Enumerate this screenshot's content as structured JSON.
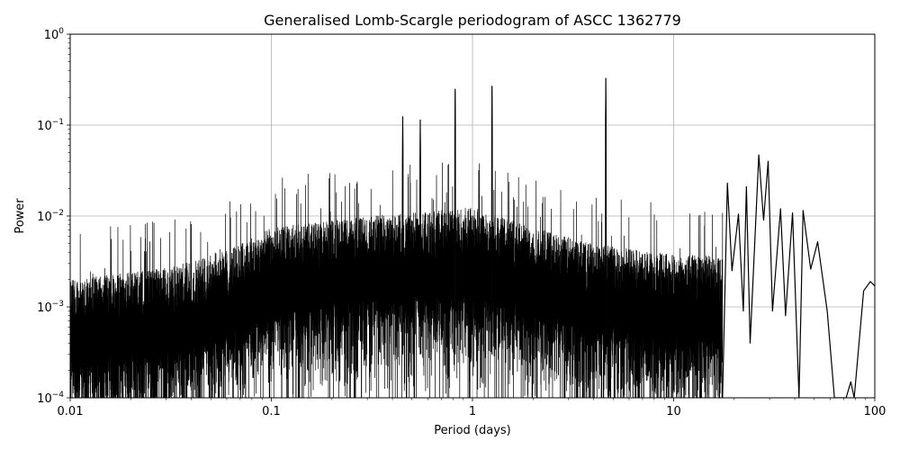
{
  "chart_data": {
    "type": "line",
    "title": "Generalised Lomb-Scargle periodogram of ASCC 1362779",
    "xlabel": "Period (days)",
    "ylabel": "Power",
    "x_scale": "log",
    "y_scale": "log",
    "xlim": [
      0.01,
      100
    ],
    "ylim": [
      0.0001,
      1
    ],
    "grid": true,
    "legend": "none",
    "x_ticks": [
      {
        "value": 0.01,
        "label": "0.01"
      },
      {
        "value": 0.1,
        "label": "0.1"
      },
      {
        "value": 1,
        "label": "1"
      },
      {
        "value": 10,
        "label": "10"
      },
      {
        "value": 100,
        "label": "100"
      }
    ],
    "y_ticks": [
      {
        "value": 0.0001,
        "mantissa": "10",
        "exponent": "−4"
      },
      {
        "value": 0.001,
        "mantissa": "10",
        "exponent": "−3"
      },
      {
        "value": 0.01,
        "mantissa": "10",
        "exponent": "−2"
      },
      {
        "value": 0.1,
        "mantissa": "10",
        "exponent": "−1"
      },
      {
        "value": 1,
        "mantissa": "10",
        "exponent": "0"
      }
    ],
    "series": [
      {
        "color": "#000000",
        "notable_peaks": [
          {
            "period": 0.45,
            "power": 0.125
          },
          {
            "period": 0.55,
            "power": 0.115
          },
          {
            "period": 0.82,
            "power": 0.25
          },
          {
            "period": 1.25,
            "power": 0.27
          },
          {
            "period": 4.6,
            "power": 0.33
          },
          {
            "period": 18.5,
            "power": 0.023
          },
          {
            "period": 23,
            "power": 0.021
          },
          {
            "period": 26.5,
            "power": 0.047
          },
          {
            "period": 29.5,
            "power": 0.04
          },
          {
            "period": 34,
            "power": 0.012
          },
          {
            "period": 39,
            "power": 0.0108
          },
          {
            "period": 44,
            "power": 0.0115
          },
          {
            "period": 52,
            "power": 0.0052
          },
          {
            "period": 95,
            "power": 0.0019
          }
        ],
        "smooth_long_period_curve": [
          [
            17.5,
            0.0001
          ],
          [
            18.5,
            0.023
          ],
          [
            19.5,
            0.0025
          ],
          [
            21.0,
            0.0105
          ],
          [
            22.2,
            0.0009
          ],
          [
            23.0,
            0.021
          ],
          [
            24.0,
            0.0004
          ],
          [
            26.5,
            0.047
          ],
          [
            28.0,
            0.009
          ],
          [
            29.5,
            0.04
          ],
          [
            31.0,
            0.0009
          ],
          [
            34.0,
            0.012
          ],
          [
            36.0,
            0.0008
          ],
          [
            39.0,
            0.0108
          ],
          [
            42.0,
            0.0001
          ],
          [
            44.0,
            0.0115
          ],
          [
            48.0,
            0.0026
          ],
          [
            52.0,
            0.0052
          ],
          [
            58.0,
            0.0009
          ],
          [
            63.0,
            0.0001
          ],
          [
            72.0,
            0.0001
          ],
          [
            76.0,
            0.00015
          ],
          [
            79.0,
            0.0001
          ],
          [
            88.0,
            0.0015
          ],
          [
            95.0,
            0.0019
          ],
          [
            100.0,
            0.0017
          ]
        ]
      }
    ]
  }
}
